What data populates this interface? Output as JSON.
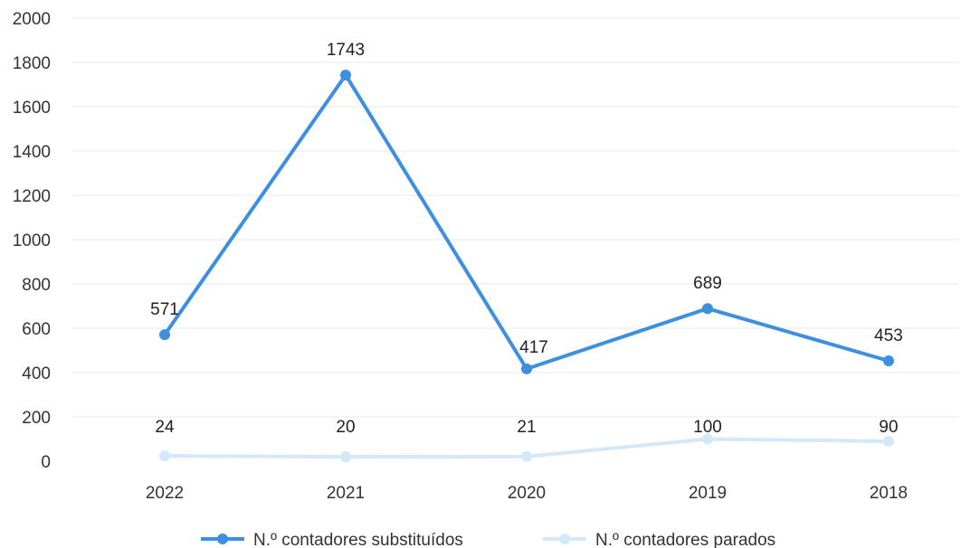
{
  "chart_data": {
    "type": "line",
    "categories": [
      "2022",
      "2021",
      "2020",
      "2019",
      "2018"
    ],
    "series": [
      {
        "name": "N.º contadores substituídos",
        "values": [
          571,
          1743,
          417,
          689,
          453
        ],
        "color": "#3d8fe0"
      },
      {
        "name": "N.º contadores parados",
        "values": [
          24,
          20,
          21,
          100,
          90
        ],
        "color": "#d3e8f8"
      }
    ],
    "ylim": [
      0,
      2000
    ],
    "yticks": [
      0,
      200,
      400,
      600,
      800,
      1000,
      1200,
      1400,
      1600,
      1800,
      2000
    ],
    "grid": true,
    "legend_position": "bottom"
  }
}
